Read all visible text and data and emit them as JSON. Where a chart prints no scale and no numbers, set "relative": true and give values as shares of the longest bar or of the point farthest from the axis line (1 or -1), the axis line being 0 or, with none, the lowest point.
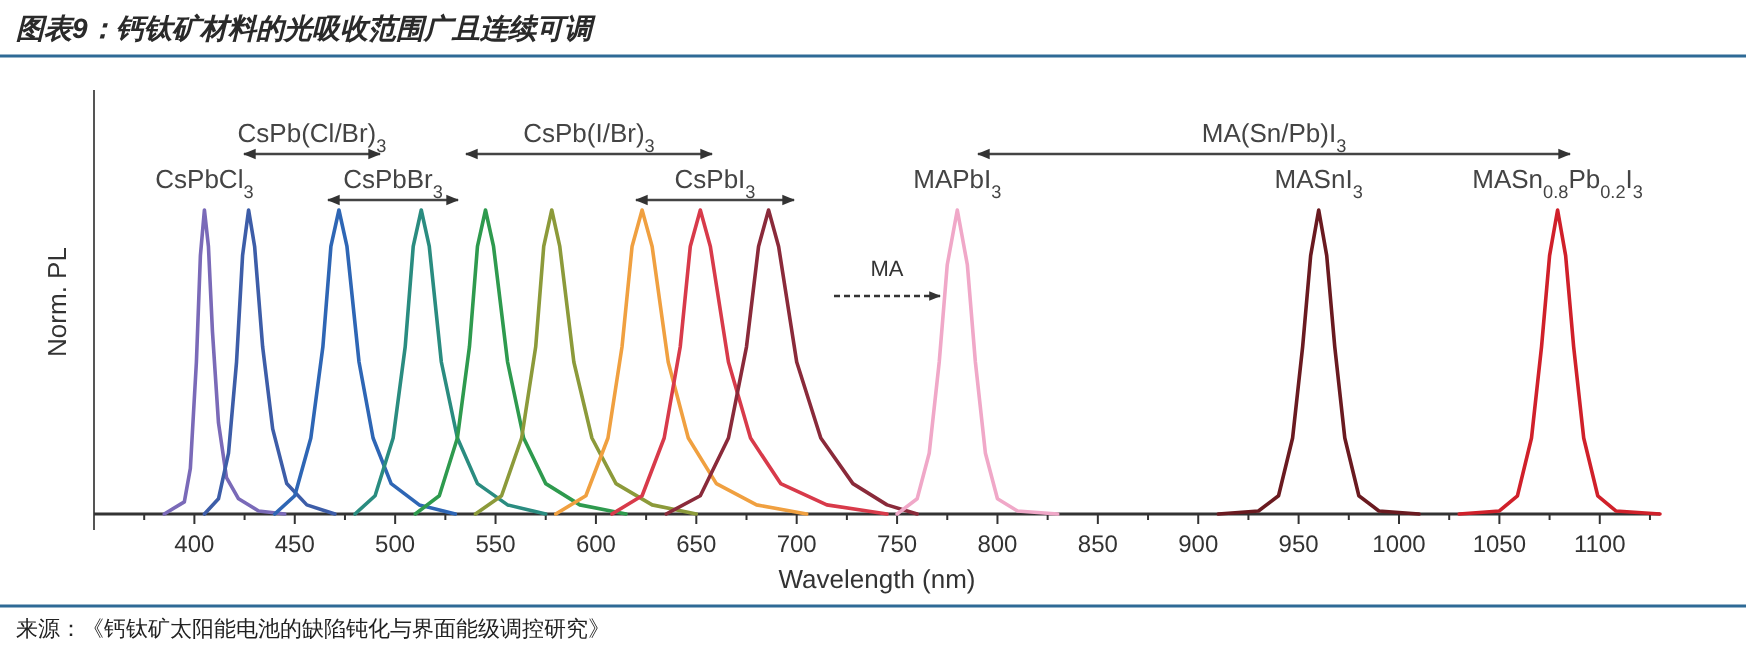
{
  "chart_data": {
    "type": "line",
    "relative": true,
    "title": "图表9：钙钛矿材料的光吸收范围广且连续可调",
    "xlabel": "Wavelength (nm)",
    "ylabel": "Norm. PL",
    "xlim": [
      350,
      1130
    ],
    "xticks": [
      {
        "value": 375,
        "label": null
      },
      400,
      {
        "value": 425,
        "label": null
      },
      450,
      {
        "value": 475,
        "label": null
      },
      500,
      {
        "value": 525,
        "label": null
      },
      550,
      {
        "value": 575,
        "label": null
      },
      600,
      {
        "value": 625,
        "label": null
      },
      650,
      {
        "value": 675,
        "label": null
      },
      700,
      {
        "value": 725,
        "label": null
      },
      750,
      {
        "value": 775,
        "label": null
      },
      800,
      {
        "value": 825,
        "label": null
      },
      850,
      {
        "value": 875,
        "label": null
      },
      900,
      {
        "value": 925,
        "label": null
      },
      950,
      {
        "value": 975,
        "label": null
      },
      1000,
      {
        "value": 1025,
        "label": null
      },
      1050,
      {
        "value": 1075,
        "label": null
      },
      1100,
      {
        "value": 1125,
        "label": null
      }
    ],
    "series": [
      {
        "name": "CsPbCl$_{3}$",
        "color": "#7a6ab8",
        "x": [
          385,
          395,
          398,
          401,
          403,
          405,
          407,
          409,
          412,
          416,
          422,
          432,
          445
        ],
        "values": [
          0,
          0.04,
          0.15,
          0.5,
          0.85,
          1,
          0.88,
          0.6,
          0.3,
          0.12,
          0.05,
          0.01,
          0
        ]
      },
      {
        "color": "#3d5da8",
        "x": [
          405,
          412,
          417,
          421,
          424,
          427,
          430,
          434,
          439,
          446,
          456,
          470
        ],
        "values": [
          0,
          0.05,
          0.2,
          0.5,
          0.85,
          1,
          0.88,
          0.55,
          0.28,
          0.1,
          0.03,
          0
        ]
      },
      {
        "color": "#2e66b5",
        "x": [
          440,
          450,
          458,
          464,
          468,
          472,
          476,
          482,
          489,
          498,
          512,
          530
        ],
        "values": [
          0,
          0.06,
          0.25,
          0.55,
          0.88,
          1,
          0.88,
          0.5,
          0.25,
          0.1,
          0.03,
          0
        ]
      },
      {
        "color": "#2a8c80",
        "x": [
          480,
          490,
          499,
          505,
          509,
          513,
          517,
          523,
          531,
          541,
          556,
          575
        ],
        "values": [
          0,
          0.06,
          0.25,
          0.55,
          0.88,
          1,
          0.88,
          0.5,
          0.25,
          0.1,
          0.03,
          0
        ]
      },
      {
        "color": "#2e9a4e",
        "x": [
          510,
          522,
          531,
          537,
          541,
          545,
          549,
          556,
          564,
          575,
          592,
          615
        ],
        "values": [
          0,
          0.06,
          0.25,
          0.55,
          0.88,
          1,
          0.88,
          0.5,
          0.25,
          0.1,
          0.03,
          0
        ]
      },
      {
        "color": "#8c9a3a",
        "x": [
          540,
          553,
          563,
          570,
          574,
          578,
          582,
          589,
          598,
          610,
          628,
          650
        ],
        "values": [
          0,
          0.06,
          0.25,
          0.55,
          0.88,
          1,
          0.88,
          0.5,
          0.25,
          0.1,
          0.03,
          0
        ]
      },
      {
        "color": "#f0a040",
        "x": [
          580,
          595,
          606,
          613,
          618,
          623,
          628,
          636,
          646,
          660,
          680,
          705
        ],
        "values": [
          0,
          0.06,
          0.25,
          0.55,
          0.88,
          1,
          0.88,
          0.5,
          0.25,
          0.1,
          0.03,
          0
        ]
      },
      {
        "color": "#d83a4a",
        "x": [
          608,
          623,
          634,
          642,
          647,
          652,
          657,
          666,
          677,
          692,
          715,
          745
        ],
        "values": [
          0,
          0.06,
          0.25,
          0.55,
          0.88,
          1,
          0.88,
          0.5,
          0.25,
          0.1,
          0.03,
          0
        ]
      },
      {
        "color": "#8a2a3a",
        "x": [
          635,
          652,
          666,
          675,
          681,
          686,
          691,
          700,
          712,
          728,
          745,
          760
        ],
        "values": [
          0,
          0.06,
          0.25,
          0.55,
          0.88,
          1,
          0.88,
          0.5,
          0.25,
          0.1,
          0.03,
          0
        ]
      },
      {
        "name": "MAPbI$_{3}$",
        "color": "#f0a8c8",
        "x": [
          750,
          760,
          766,
          771,
          775,
          780,
          785,
          789,
          794,
          800,
          810,
          830
        ],
        "values": [
          0,
          0.05,
          0.2,
          0.5,
          0.82,
          1,
          0.82,
          0.5,
          0.2,
          0.05,
          0.01,
          0
        ]
      },
      {
        "name": "MASnI$_{3}$",
        "color": "#6a1a20",
        "x": [
          910,
          930,
          940,
          947,
          952,
          956,
          960,
          964,
          968,
          973,
          980,
          990,
          1010
        ],
        "values": [
          0,
          0.01,
          0.06,
          0.25,
          0.55,
          0.85,
          1,
          0.85,
          0.55,
          0.25,
          0.06,
          0.01,
          0
        ]
      },
      {
        "name": "MASn$_{0.8}$Pb$_{0.2}$I$_{3}$",
        "color": "#d0202a",
        "x": [
          1030,
          1050,
          1059,
          1066,
          1071,
          1075,
          1079,
          1083,
          1087,
          1092,
          1099,
          1108,
          1130
        ],
        "values": [
          0,
          0.01,
          0.06,
          0.25,
          0.55,
          0.85,
          1,
          0.85,
          0.55,
          0.25,
          0.06,
          0.01,
          0
        ]
      }
    ],
    "annotations": [
      "CsPb(Cl/Br)$_{3}$",
      "CsPbBr$_{3}$",
      "CsPb(I/Br)$_{3}$",
      "CsPbI$_{3}$",
      "MA",
      "MA(Sn/Pb)I$_{3}$",
      "来源：《钙钛矿太阳能电池的缺陷钝化与界面能级调控研究》"
    ]
  }
}
